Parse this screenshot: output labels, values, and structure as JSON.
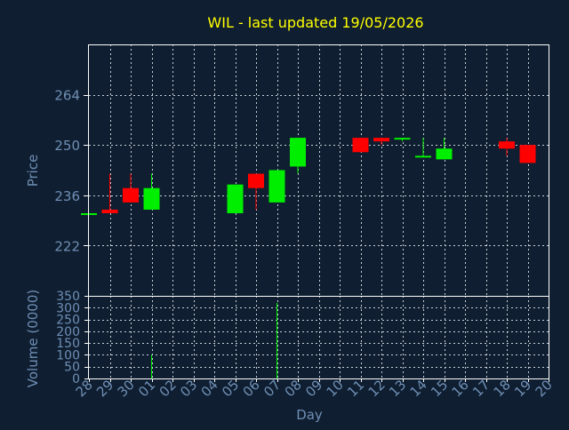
{
  "chart_data": {
    "type": "candlestick",
    "title": "WIL - last updated 19/05/2026",
    "price_axis": {
      "label": "Price",
      "ticks": [
        222,
        236,
        250,
        264
      ],
      "ylim": [
        208,
        278
      ]
    },
    "volume_axis": {
      "label": "Volume (0000)",
      "ticks": [
        0,
        50,
        100,
        150,
        200,
        250,
        300,
        350
      ],
      "ylim": [
        0,
        350
      ]
    },
    "x_axis": {
      "label": "Day",
      "ticks": [
        "28",
        "29",
        "30",
        "01",
        "02",
        "03",
        "04",
        "05",
        "06",
        "07",
        "08",
        "09",
        "10",
        "11",
        "12",
        "13",
        "14",
        "15",
        "16",
        "17",
        "18",
        "19",
        "20"
      ]
    },
    "grid": true,
    "colors": {
      "up": "#00ee00",
      "down": "#ff0000",
      "title": "#ffff00",
      "axis_text": "#6f8fb5",
      "frame": "#ffffff",
      "background": "#0f1e30"
    },
    "candles": [
      {
        "day": "28",
        "open": 231,
        "high": 231,
        "low": 231,
        "close": 231,
        "volume": 0
      },
      {
        "day": "29",
        "open": 232,
        "high": 242,
        "low": 231,
        "close": 231,
        "volume": 0
      },
      {
        "day": "30",
        "open": 238,
        "high": 242,
        "low": 234,
        "close": 234,
        "volume": 0
      },
      {
        "day": "01",
        "open": 232,
        "high": 242,
        "low": 232,
        "close": 238,
        "volume": 100
      },
      {
        "day": "05",
        "open": 231,
        "high": 239,
        "low": 231,
        "close": 239,
        "volume": 0
      },
      {
        "day": "06",
        "open": 242,
        "high": 242,
        "low": 232,
        "close": 238,
        "volume": 0
      },
      {
        "day": "07",
        "open": 234,
        "high": 243,
        "low": 234,
        "close": 243,
        "volume": 320
      },
      {
        "day": "08",
        "open": 244,
        "high": 252,
        "low": 242,
        "close": 252,
        "volume": 0
      },
      {
        "day": "11",
        "open": 252,
        "high": 252,
        "low": 248,
        "close": 248,
        "volume": 0
      },
      {
        "day": "12",
        "open": 252,
        "high": 252,
        "low": 250,
        "close": 251,
        "volume": 0
      },
      {
        "day": "13",
        "open": 252,
        "high": 252,
        "low": 251,
        "close": 252,
        "volume": 0
      },
      {
        "day": "14",
        "open": 247,
        "high": 252,
        "low": 247,
        "close": 247,
        "volume": 0
      },
      {
        "day": "15",
        "open": 246,
        "high": 252,
        "low": 246,
        "close": 249,
        "volume": 0
      },
      {
        "day": "18",
        "open": 251,
        "high": 252,
        "low": 247,
        "close": 249,
        "volume": 0
      },
      {
        "day": "19",
        "open": 250,
        "high": 250,
        "low": 245,
        "close": 245,
        "volume": 0
      }
    ]
  }
}
